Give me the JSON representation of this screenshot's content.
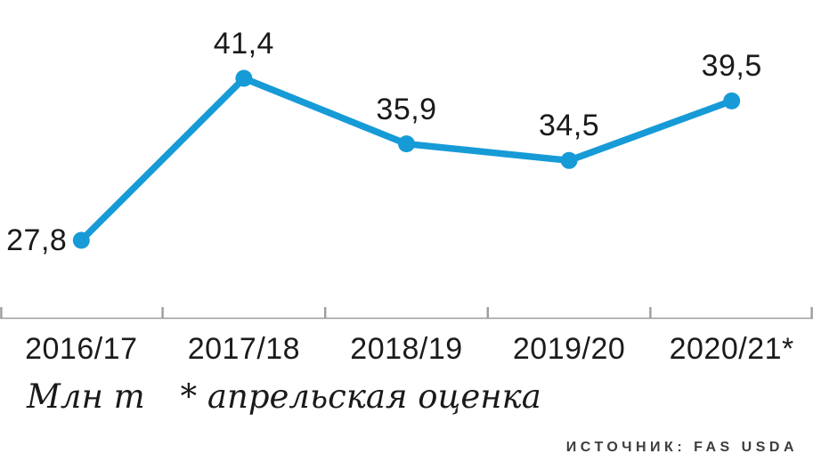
{
  "chart_data": {
    "type": "line",
    "categories": [
      "2016/17",
      "2017/18",
      "2018/19",
      "2019/20",
      "2020/21*"
    ],
    "values": [
      27.8,
      41.4,
      35.9,
      34.5,
      39.5
    ],
    "value_labels": [
      "27,8",
      "41,4",
      "35,9",
      "34,5",
      "39,5"
    ],
    "title": "",
    "xlabel": "",
    "ylabel": "Млн т",
    "ylim": [
      27,
      42
    ],
    "grid": false,
    "legend": "none",
    "line_color": "#169bd7",
    "axis_color": "#9d9d9c",
    "label_color": "#1a1a1a"
  },
  "footer": {
    "unit_label": "Млн т",
    "footnote": "* апрельская оценка",
    "source": "ИСТОЧНИК: FAS USDA"
  }
}
